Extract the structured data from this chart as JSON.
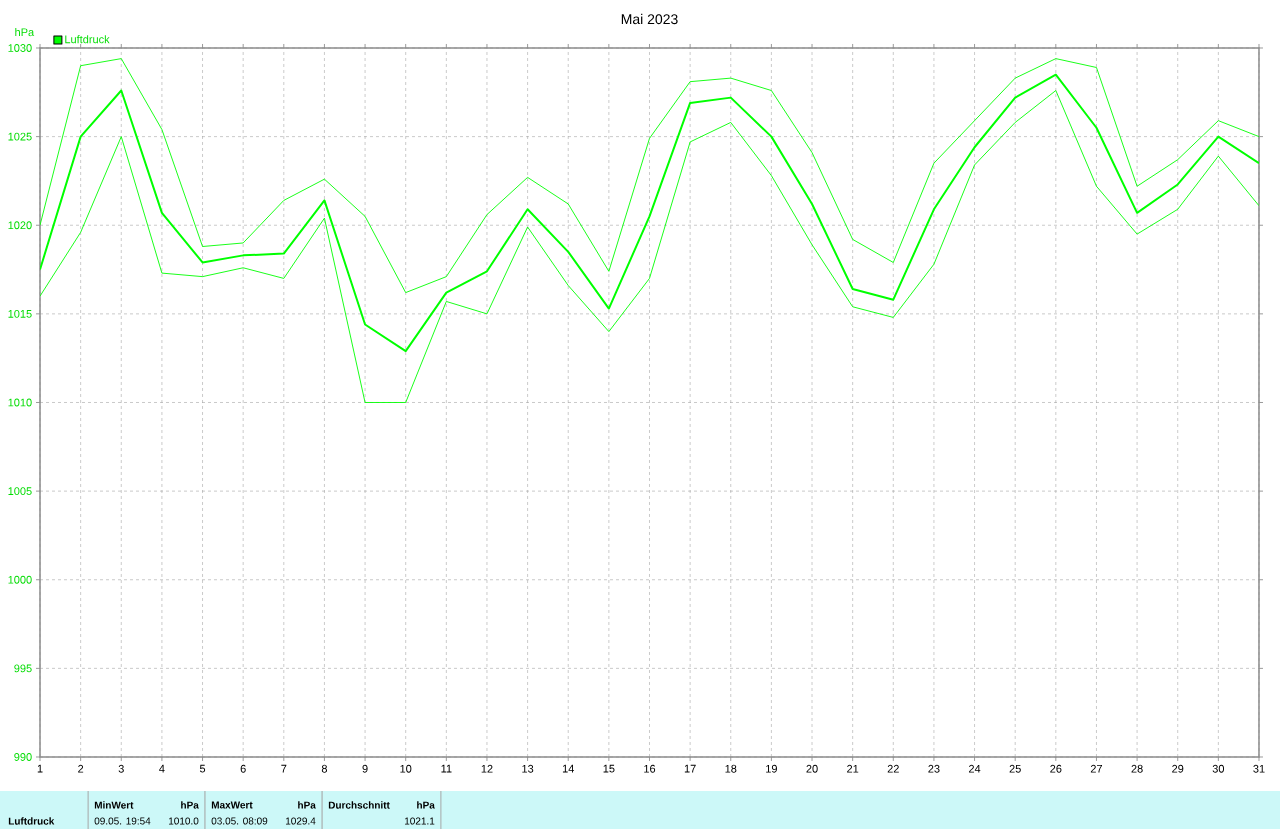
{
  "chart_data": {
    "type": "line",
    "title": "Mai 2023",
    "ylabel": "hPa",
    "x": [
      1,
      2,
      3,
      4,
      5,
      6,
      7,
      8,
      9,
      10,
      11,
      12,
      13,
      14,
      15,
      16,
      17,
      18,
      19,
      20,
      21,
      22,
      23,
      24,
      25,
      26,
      27,
      28,
      29,
      30,
      31
    ],
    "xlim": [
      1,
      31
    ],
    "xticks": [
      1,
      2,
      3,
      4,
      5,
      6,
      7,
      8,
      9,
      10,
      11,
      12,
      13,
      14,
      15,
      16,
      17,
      18,
      19,
      20,
      21,
      22,
      23,
      24,
      25,
      26,
      27,
      28,
      29,
      30,
      31
    ],
    "ylim": [
      990,
      1030
    ],
    "yticks": [
      990,
      995,
      1000,
      1005,
      1010,
      1015,
      1020,
      1025,
      1030
    ],
    "grid": true,
    "legend": "top left",
    "series": [
      {
        "name": "Luftdruck",
        "color": "#00ff00",
        "values": [
          1017.5,
          1025.0,
          1027.6,
          1020.7,
          1017.9,
          1018.3,
          1018.4,
          1021.4,
          1014.4,
          1012.9,
          1016.2,
          1017.4,
          1020.9,
          1018.5,
          1015.3,
          1020.5,
          1026.9,
          1027.2,
          1025.0,
          1021.2,
          1016.4,
          1015.8,
          1020.9,
          1024.4,
          1027.2,
          1028.5,
          1025.5,
          1020.7,
          1022.3,
          1025.0,
          1023.5
        ]
      },
      {
        "color": "#00ff00",
        "values": [
          1020.0,
          1029.0,
          1029.4,
          1025.4,
          1018.8,
          1019.0,
          1021.4,
          1022.6,
          1020.5,
          1016.2,
          1017.1,
          1020.6,
          1022.7,
          1021.2,
          1017.4,
          1024.9,
          1028.1,
          1028.3,
          1027.6,
          1024.1,
          1019.2,
          1017.9,
          1023.5,
          1025.9,
          1028.3,
          1029.4,
          1028.9,
          1022.2,
          1023.7,
          1025.9,
          1025.0
        ]
      },
      {
        "color": "#00ff00",
        "values": [
          1016.0,
          1019.6,
          1025.0,
          1017.3,
          1017.1,
          1017.6,
          1017.0,
          1020.4,
          1010.0,
          1010.0,
          1015.7,
          1015.0,
          1019.9,
          1016.6,
          1014.0,
          1017.0,
          1024.7,
          1025.8,
          1022.8,
          1018.9,
          1015.4,
          1014.8,
          1017.8,
          1023.4,
          1025.8,
          1027.6,
          1022.2,
          1019.5,
          1020.9,
          1023.9,
          1021.1
        ]
      }
    ],
    "annotations": [
      "Luftdruck",
      "MinWert",
      "hPa",
      "09.05.  19:54",
      "1010.0",
      "MaxWert",
      "hPa",
      "03.05.  08:09",
      "1029.4",
      "Durchschnitt",
      "hPa",
      "1021.1"
    ]
  }
}
